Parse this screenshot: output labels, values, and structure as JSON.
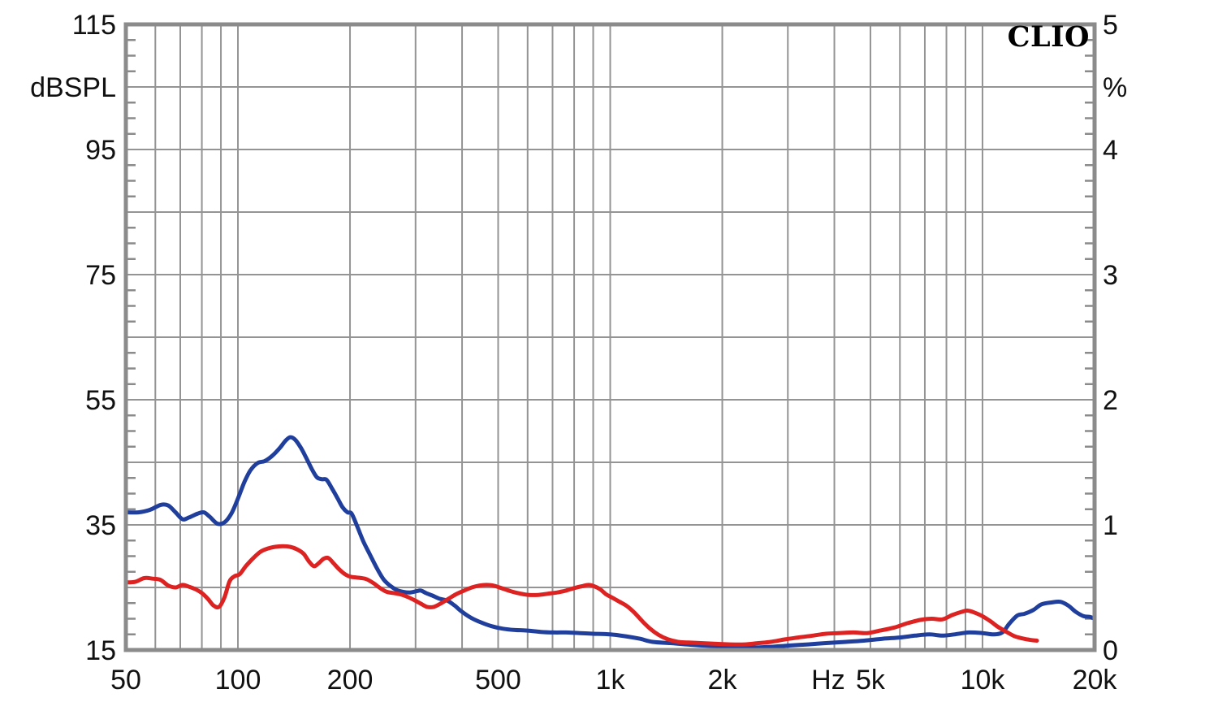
{
  "branding": {
    "logo_text": "CLIO"
  },
  "colors": {
    "background": "#ffffff",
    "text": "#111111",
    "grid": "#949494",
    "frame": "#8b8b8b",
    "blue_series": "#203f9c",
    "red_series": "#dd2222"
  },
  "chart_data": {
    "type": "line",
    "title": "",
    "grid": "on",
    "legend": "none",
    "x_axis": {
      "scale": "log",
      "unit": "Hz",
      "min": 50,
      "max": 20000,
      "gridlines": [
        60,
        70,
        80,
        90,
        100,
        200,
        300,
        400,
        500,
        600,
        700,
        800,
        900,
        1000,
        2000,
        3000,
        4000,
        5000,
        6000,
        7000,
        8000,
        9000,
        10000
      ],
      "labels": [
        {
          "f": 50,
          "text": "50"
        },
        {
          "f": 100,
          "text": "100"
        },
        {
          "f": 200,
          "text": "200"
        },
        {
          "f": 500,
          "text": "500"
        },
        {
          "f": 1000,
          "text": "1k"
        },
        {
          "f": 2000,
          "text": "2k"
        },
        {
          "f": 3850,
          "text": "Hz"
        },
        {
          "f": 5000,
          "text": "5k"
        },
        {
          "f": 10000,
          "text": "10k"
        },
        {
          "f": 20000,
          "text": "20k"
        }
      ]
    },
    "left_axis": {
      "title": "dBSPL",
      "unit": "dBSPL",
      "min": 15,
      "max": 115,
      "gridline_step": 10,
      "minor_tick_step": 2.5,
      "labels": [
        {
          "value": 115,
          "text": "115"
        },
        {
          "value": 105,
          "text": "dBSPL"
        },
        {
          "value": 95,
          "text": "95"
        },
        {
          "value": 75,
          "text": "75"
        },
        {
          "value": 55,
          "text": "55"
        },
        {
          "value": 35,
          "text": "35"
        },
        {
          "value": 15,
          "text": "15"
        }
      ]
    },
    "right_axis": {
      "title": "%",
      "unit": "%",
      "min": 0,
      "max": 5,
      "labels": [
        {
          "value": 5,
          "text": "5"
        },
        {
          "value": 4.5,
          "text": "%"
        },
        {
          "value": 4,
          "text": "4"
        },
        {
          "value": 3,
          "text": "3"
        },
        {
          "value": 2,
          "text": "2"
        },
        {
          "value": 1,
          "text": "1"
        },
        {
          "value": 0,
          "text": "0"
        }
      ]
    },
    "series": [
      {
        "name": "blue-curve",
        "color_key": "blue_series",
        "points_f_db": [
          [
            50,
            37.0
          ],
          [
            54,
            37.0
          ],
          [
            58,
            37.4
          ],
          [
            62,
            38.2
          ],
          [
            65,
            38.1
          ],
          [
            68,
            37.0
          ],
          [
            71,
            35.9
          ],
          [
            74,
            36.2
          ],
          [
            78,
            36.8
          ],
          [
            81,
            37.0
          ],
          [
            84,
            36.3
          ],
          [
            88,
            35.2
          ],
          [
            92,
            35.4
          ],
          [
            96,
            36.8
          ],
          [
            100,
            39.2
          ],
          [
            104,
            41.8
          ],
          [
            108,
            43.7
          ],
          [
            113,
            44.9
          ],
          [
            118,
            45.2
          ],
          [
            124,
            46.1
          ],
          [
            130,
            47.4
          ],
          [
            134,
            48.4
          ],
          [
            138,
            49.0
          ],
          [
            142,
            48.7
          ],
          [
            147,
            47.5
          ],
          [
            152,
            45.9
          ],
          [
            158,
            43.9
          ],
          [
            163,
            42.6
          ],
          [
            168,
            42.3
          ],
          [
            173,
            42.2
          ],
          [
            179,
            40.8
          ],
          [
            185,
            39.3
          ],
          [
            191,
            37.8
          ],
          [
            197,
            37.0
          ],
          [
            202,
            36.8
          ],
          [
            209,
            34.8
          ],
          [
            217,
            32.4
          ],
          [
            226,
            30.3
          ],
          [
            236,
            28.1
          ],
          [
            246,
            26.3
          ],
          [
            256,
            25.3
          ],
          [
            267,
            24.6
          ],
          [
            278,
            24.3
          ],
          [
            290,
            24.2
          ],
          [
            302,
            24.4
          ],
          [
            310,
            24.5
          ],
          [
            320,
            24.1
          ],
          [
            333,
            23.7
          ],
          [
            348,
            23.2
          ],
          [
            365,
            22.9
          ],
          [
            382,
            22.1
          ],
          [
            400,
            21.1
          ],
          [
            424,
            20.1
          ],
          [
            450,
            19.4
          ],
          [
            480,
            18.8
          ],
          [
            515,
            18.4
          ],
          [
            555,
            18.2
          ],
          [
            600,
            18.1
          ],
          [
            650,
            17.9
          ],
          [
            705,
            17.8
          ],
          [
            760,
            17.8
          ],
          [
            830,
            17.7
          ],
          [
            900,
            17.6
          ],
          [
            1000,
            17.5
          ],
          [
            1100,
            17.2
          ],
          [
            1200,
            16.8
          ],
          [
            1300,
            16.3
          ],
          [
            1450,
            16.1
          ],
          [
            1600,
            15.9
          ],
          [
            1800,
            15.7
          ],
          [
            2100,
            15.6
          ],
          [
            2400,
            15.4
          ],
          [
            2700,
            15.5
          ],
          [
            3000,
            15.7
          ],
          [
            3400,
            15.9
          ],
          [
            3800,
            16.1
          ],
          [
            4300,
            16.3
          ],
          [
            4800,
            16.5
          ],
          [
            5400,
            16.8
          ],
          [
            6000,
            17.0
          ],
          [
            6600,
            17.3
          ],
          [
            7200,
            17.5
          ],
          [
            7800,
            17.3
          ],
          [
            8400,
            17.5
          ],
          [
            9200,
            17.8
          ],
          [
            10000,
            17.7
          ],
          [
            10700,
            17.5
          ],
          [
            11300,
            17.8
          ],
          [
            11800,
            19.2
          ],
          [
            12400,
            20.5
          ],
          [
            13000,
            20.8
          ],
          [
            13700,
            21.4
          ],
          [
            14400,
            22.3
          ],
          [
            15300,
            22.6
          ],
          [
            16200,
            22.7
          ],
          [
            17000,
            22.1
          ],
          [
            17800,
            21.1
          ],
          [
            18700,
            20.4
          ],
          [
            19400,
            20.3
          ],
          [
            20000,
            20.0
          ]
        ]
      },
      {
        "name": "red-curve",
        "color_key": "red_series",
        "points_f_db": [
          [
            50,
            25.8
          ],
          [
            53,
            25.9
          ],
          [
            56,
            26.5
          ],
          [
            59,
            26.4
          ],
          [
            62,
            26.2
          ],
          [
            65,
            25.3
          ],
          [
            68,
            25.0
          ],
          [
            71,
            25.4
          ],
          [
            74,
            25.1
          ],
          [
            77,
            24.7
          ],
          [
            80,
            24.1
          ],
          [
            83,
            23.2
          ],
          [
            86,
            22.1
          ],
          [
            89,
            21.9
          ],
          [
            92,
            23.4
          ],
          [
            95,
            26.0
          ],
          [
            98,
            26.8
          ],
          [
            101,
            27.1
          ],
          [
            105,
            28.4
          ],
          [
            110,
            29.7
          ],
          [
            115,
            30.7
          ],
          [
            120,
            31.2
          ],
          [
            126,
            31.5
          ],
          [
            132,
            31.6
          ],
          [
            138,
            31.5
          ],
          [
            144,
            31.1
          ],
          [
            150,
            30.4
          ],
          [
            155,
            29.2
          ],
          [
            160,
            28.4
          ],
          [
            165,
            28.9
          ],
          [
            170,
            29.6
          ],
          [
            175,
            29.7
          ],
          [
            181,
            28.8
          ],
          [
            187,
            27.9
          ],
          [
            194,
            27.1
          ],
          [
            201,
            26.7
          ],
          [
            208,
            26.6
          ],
          [
            215,
            26.5
          ],
          [
            222,
            26.3
          ],
          [
            231,
            25.7
          ],
          [
            241,
            24.9
          ],
          [
            251,
            24.3
          ],
          [
            262,
            24.1
          ],
          [
            273,
            23.9
          ],
          [
            285,
            23.5
          ],
          [
            297,
            23.0
          ],
          [
            310,
            22.4
          ],
          [
            322,
            21.9
          ],
          [
            336,
            21.9
          ],
          [
            352,
            22.5
          ],
          [
            368,
            23.2
          ],
          [
            385,
            23.9
          ],
          [
            405,
            24.5
          ],
          [
            425,
            25.0
          ],
          [
            445,
            25.3
          ],
          [
            465,
            25.4
          ],
          [
            485,
            25.3
          ],
          [
            510,
            24.9
          ],
          [
            540,
            24.4
          ],
          [
            575,
            24.0
          ],
          [
            605,
            23.8
          ],
          [
            640,
            23.8
          ],
          [
            680,
            24.0
          ],
          [
            720,
            24.2
          ],
          [
            760,
            24.5
          ],
          [
            800,
            24.9
          ],
          [
            840,
            25.2
          ],
          [
            875,
            25.4
          ],
          [
            905,
            25.2
          ],
          [
            940,
            24.7
          ],
          [
            975,
            23.9
          ],
          [
            1010,
            23.4
          ],
          [
            1060,
            22.7
          ],
          [
            1110,
            22.0
          ],
          [
            1160,
            21.0
          ],
          [
            1220,
            19.6
          ],
          [
            1280,
            18.4
          ],
          [
            1350,
            17.4
          ],
          [
            1430,
            16.7
          ],
          [
            1520,
            16.3
          ],
          [
            1620,
            16.2
          ],
          [
            1750,
            16.1
          ],
          [
            1900,
            16.0
          ],
          [
            2100,
            15.9
          ],
          [
            2300,
            15.9
          ],
          [
            2500,
            16.1
          ],
          [
            2700,
            16.3
          ],
          [
            2950,
            16.7
          ],
          [
            3200,
            17.0
          ],
          [
            3500,
            17.3
          ],
          [
            3800,
            17.6
          ],
          [
            4100,
            17.7
          ],
          [
            4500,
            17.8
          ],
          [
            4900,
            17.7
          ],
          [
            5300,
            18.1
          ],
          [
            5800,
            18.6
          ],
          [
            6300,
            19.3
          ],
          [
            6800,
            19.8
          ],
          [
            7300,
            20.0
          ],
          [
            7800,
            19.9
          ],
          [
            8300,
            20.6
          ],
          [
            8800,
            21.1
          ],
          [
            9100,
            21.3
          ],
          [
            9500,
            21.0
          ],
          [
            10000,
            20.4
          ],
          [
            10500,
            19.6
          ],
          [
            11000,
            18.7
          ],
          [
            11600,
            17.9
          ],
          [
            12200,
            17.2
          ],
          [
            12900,
            16.8
          ],
          [
            13500,
            16.6
          ],
          [
            14000,
            16.5
          ]
        ]
      }
    ]
  }
}
